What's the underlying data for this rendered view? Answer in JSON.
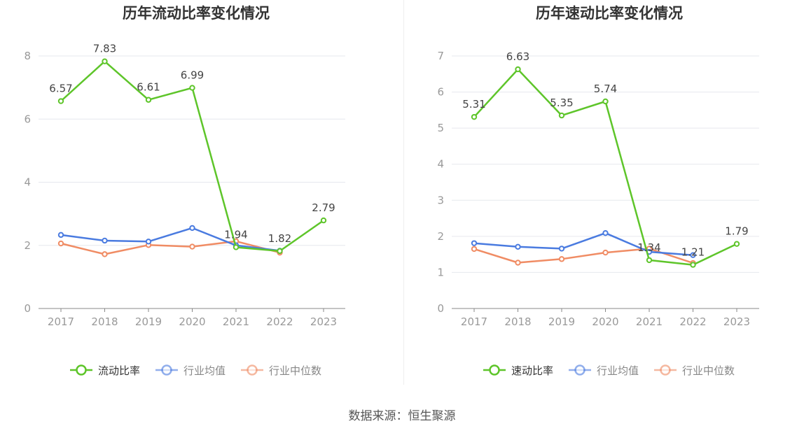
{
  "footer": {
    "source": "数据来源：恒生聚源"
  },
  "colors": {
    "main": "#5ec52a",
    "avg": "#4a7be0",
    "median": "#f08c64",
    "axis_text": "#999999",
    "grid": "#e6e8ee",
    "title": "#333333"
  },
  "chart_data": [
    {
      "type": "line",
      "title": "历年流动比率变化情况",
      "categories": [
        "2017",
        "2018",
        "2019",
        "2020",
        "2021",
        "2022",
        "2023"
      ],
      "ylim": [
        0,
        8
      ],
      "yticks": [
        0,
        2,
        4,
        6,
        8
      ],
      "grid": true,
      "legend_position": "bottom",
      "series": [
        {
          "name": "流动比率",
          "color": "#5ec52a",
          "labeled": true,
          "values": [
            6.57,
            7.83,
            6.61,
            6.99,
            1.94,
            1.82,
            2.79
          ]
        },
        {
          "name": "行业均值",
          "color": "#4a7be0",
          "labeled": false,
          "values": [
            2.33,
            2.15,
            2.12,
            2.55,
            2.0,
            1.83,
            null
          ]
        },
        {
          "name": "行业中位数",
          "color": "#f08c64",
          "labeled": false,
          "values": [
            2.06,
            1.72,
            2.01,
            1.96,
            2.13,
            1.77,
            null
          ]
        }
      ]
    },
    {
      "type": "line",
      "title": "历年速动比率变化情况",
      "categories": [
        "2017",
        "2018",
        "2019",
        "2020",
        "2021",
        "2022",
        "2023"
      ],
      "ylim": [
        0,
        7
      ],
      "yticks": [
        0,
        1,
        2,
        3,
        4,
        5,
        6,
        7
      ],
      "grid": true,
      "legend_position": "bottom",
      "series": [
        {
          "name": "速动比率",
          "color": "#5ec52a",
          "labeled": true,
          "values": [
            5.31,
            6.63,
            5.35,
            5.74,
            1.34,
            1.21,
            1.79
          ]
        },
        {
          "name": "行业均值",
          "color": "#4a7be0",
          "labeled": false,
          "values": [
            1.81,
            1.71,
            1.66,
            2.09,
            1.57,
            1.48,
            null
          ]
        },
        {
          "name": "行业中位数",
          "color": "#f08c64",
          "labeled": false,
          "values": [
            1.65,
            1.27,
            1.37,
            1.55,
            1.66,
            1.26,
            null
          ]
        }
      ]
    }
  ]
}
